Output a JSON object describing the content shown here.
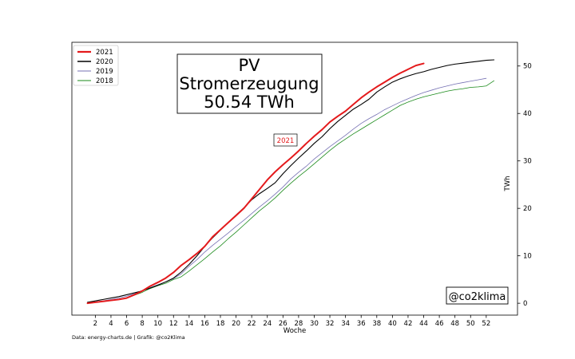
{
  "chart_data": {
    "type": "line",
    "title_lines": [
      "PV",
      "Stromerzeugung",
      "50.54 TWh"
    ],
    "year_tag": "2021",
    "xlabel": "Woche",
    "ylabel": "TWh",
    "xlim": [
      -1,
      56
    ],
    "ylim": [
      -2.5,
      55
    ],
    "xticks": [
      2,
      4,
      6,
      8,
      10,
      12,
      14,
      16,
      18,
      20,
      22,
      24,
      26,
      28,
      30,
      32,
      34,
      36,
      38,
      40,
      42,
      44,
      46,
      48,
      50,
      52
    ],
    "yticks": [
      0,
      10,
      20,
      30,
      40,
      50
    ],
    "y_axis_side": "right",
    "grid": false,
    "legend_position": "top-left",
    "watermark": "@co2klima",
    "footer": "Data: energy-charts.de | Grafik: @co2Klima",
    "series": [
      {
        "name": "2021",
        "color": "#e41a1c",
        "width": 2.0,
        "x": [
          1,
          2,
          3,
          4,
          5,
          6,
          7,
          8,
          9,
          10,
          11,
          12,
          13,
          14,
          15,
          16,
          17,
          18,
          19,
          20,
          21,
          22,
          23,
          24,
          25,
          26,
          27,
          28,
          29,
          30,
          31,
          32,
          33,
          34,
          35,
          36,
          37,
          38,
          39,
          40,
          41,
          42,
          43,
          44
        ],
        "y": [
          0.0,
          0.2,
          0.4,
          0.6,
          0.8,
          1.1,
          1.8,
          2.6,
          3.6,
          4.4,
          5.3,
          6.5,
          8.0,
          9.2,
          10.5,
          12.0,
          14.0,
          15.5,
          17.0,
          18.5,
          20.0,
          22.0,
          24.0,
          26.0,
          27.7,
          29.2,
          30.6,
          32.1,
          33.7,
          35.2,
          36.6,
          38.2,
          39.4,
          40.5,
          41.9,
          43.3,
          44.5,
          45.6,
          46.6,
          47.6,
          48.5,
          49.3,
          50.1,
          50.54
        ]
      },
      {
        "name": "2020",
        "color": "#000000",
        "width": 1.1,
        "x": [
          1,
          2,
          3,
          4,
          5,
          6,
          7,
          8,
          9,
          10,
          11,
          12,
          13,
          14,
          15,
          16,
          17,
          18,
          19,
          20,
          21,
          22,
          23,
          24,
          25,
          26,
          27,
          28,
          29,
          30,
          31,
          32,
          33,
          34,
          35,
          36,
          37,
          38,
          39,
          40,
          41,
          42,
          43,
          44,
          45,
          46,
          47,
          48,
          49,
          50,
          51,
          52,
          53
        ],
        "y": [
          0.2,
          0.5,
          0.8,
          1.1,
          1.4,
          1.8,
          2.2,
          2.6,
          3.2,
          3.8,
          4.5,
          5.3,
          6.6,
          8.2,
          10.0,
          12.0,
          13.8,
          15.4,
          17.0,
          18.6,
          20.1,
          21.8,
          23.1,
          24.2,
          25.4,
          27.3,
          29.0,
          30.6,
          32.1,
          33.7,
          35.1,
          36.8,
          38.3,
          39.6,
          40.9,
          41.9,
          43.0,
          44.5,
          45.6,
          46.6,
          47.3,
          47.9,
          48.4,
          48.8,
          49.3,
          49.7,
          50.1,
          50.4,
          50.6,
          50.8,
          51.0,
          51.2,
          51.3
        ]
      },
      {
        "name": "2019",
        "color": "#7570b3",
        "width": 0.8,
        "x": [
          1,
          2,
          3,
          4,
          5,
          6,
          7,
          8,
          9,
          10,
          11,
          12,
          13,
          14,
          15,
          16,
          17,
          18,
          19,
          20,
          21,
          22,
          23,
          24,
          25,
          26,
          27,
          28,
          29,
          30,
          31,
          32,
          33,
          34,
          35,
          36,
          37,
          38,
          39,
          40,
          41,
          42,
          43,
          44,
          45,
          46,
          47,
          48,
          49,
          50,
          51,
          52
        ],
        "y": [
          0.1,
          0.3,
          0.5,
          0.8,
          1.1,
          1.5,
          2.0,
          2.7,
          3.3,
          3.9,
          4.5,
          5.2,
          6.2,
          7.8,
          9.2,
          10.8,
          12.2,
          13.5,
          14.8,
          16.2,
          17.5,
          18.9,
          20.3,
          21.6,
          23.0,
          24.5,
          26.2,
          27.6,
          28.9,
          30.4,
          31.7,
          33.0,
          34.2,
          35.4,
          36.7,
          37.9,
          38.9,
          39.8,
          40.8,
          41.6,
          42.4,
          43.1,
          43.8,
          44.4,
          44.9,
          45.4,
          45.8,
          46.2,
          46.5,
          46.8,
          47.1,
          47.4
        ]
      },
      {
        "name": "2018",
        "color": "#1a8a1a",
        "width": 0.8,
        "x": [
          1,
          2,
          3,
          4,
          5,
          6,
          7,
          8,
          9,
          10,
          11,
          12,
          13,
          14,
          15,
          16,
          17,
          18,
          19,
          20,
          21,
          22,
          23,
          24,
          25,
          26,
          27,
          28,
          29,
          30,
          31,
          32,
          33,
          34,
          35,
          36,
          37,
          38,
          39,
          40,
          41,
          42,
          43,
          44,
          45,
          46,
          47,
          48,
          49,
          50,
          51,
          52,
          53
        ],
        "y": [
          0.1,
          0.2,
          0.4,
          0.6,
          0.8,
          1.1,
          1.7,
          2.3,
          3.1,
          3.7,
          4.2,
          5.0,
          5.6,
          6.8,
          8.1,
          9.4,
          10.8,
          12.1,
          13.6,
          15.0,
          16.5,
          18.0,
          19.5,
          20.8,
          22.2,
          23.8,
          25.3,
          26.7,
          28.0,
          29.4,
          30.8,
          32.2,
          33.5,
          34.6,
          35.7,
          36.7,
          37.7,
          38.7,
          39.7,
          40.7,
          41.7,
          42.4,
          43.0,
          43.5,
          43.9,
          44.3,
          44.7,
          45.0,
          45.2,
          45.5,
          45.6,
          45.8,
          46.9
        ]
      }
    ]
  }
}
